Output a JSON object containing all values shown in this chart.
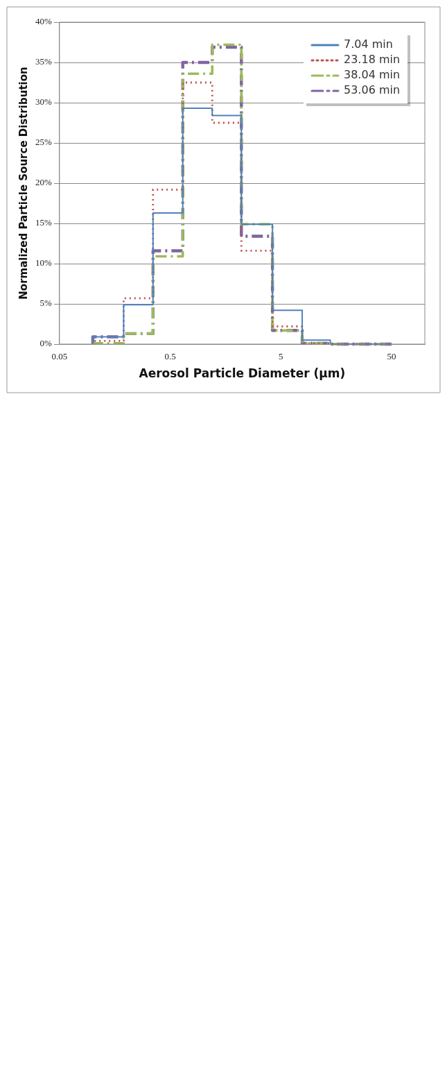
{
  "chart_data": {
    "type": "step",
    "xlabel": "Aerosol Particle Diameter (µm)",
    "ylabel": "Normalized Particle Source Distribution",
    "x": [
      0.1,
      0.19,
      0.35,
      0.65,
      1.2,
      2.2,
      4.2,
      7.8,
      14,
      27,
      50
    ],
    "series": [
      {
        "name": "7.04 min",
        "color": "#4f81bd",
        "line_style": "solid",
        "values": [
          0,
          0.9,
          4.9,
          16.3,
          29.3,
          28.4,
          14.9,
          4.2,
          0.5,
          0,
          0
        ]
      },
      {
        "name": "23.18 min",
        "color": "#c0504d",
        "line_style": "dotted",
        "values": [
          0,
          0.4,
          5.7,
          19.2,
          32.5,
          27.5,
          11.6,
          2.2,
          0.1,
          0,
          0
        ]
      },
      {
        "name": "38.04 min",
        "color": "#9bbb59",
        "line_style": "dashed",
        "values": [
          0,
          0.1,
          1.3,
          10.9,
          33.6,
          37.2,
          14.9,
          1.7,
          0.1,
          0,
          0
        ]
      },
      {
        "name": "53.06 min",
        "color": "#8064a2",
        "line_style": "dashed",
        "values": [
          0,
          0.9,
          1.3,
          11.6,
          35.0,
          36.9,
          13.4,
          1.7,
          0.1,
          0,
          0
        ]
      }
    ],
    "log": "x",
    "xlim": [
      0.05,
      100
    ],
    "xticks": [
      0.05,
      0.5,
      5,
      50
    ],
    "ylim": [
      0,
      40
    ],
    "yticks": [
      {
        "value": 0,
        "label": "0%"
      },
      {
        "value": 5,
        "label": "5%"
      },
      {
        "value": 10,
        "label": "10%"
      },
      {
        "value": 15,
        "label": "15%"
      },
      {
        "value": 20,
        "label": "20%"
      },
      {
        "value": 25,
        "label": "25%"
      },
      {
        "value": 30,
        "label": "30%"
      },
      {
        "value": 35,
        "label": "35%"
      },
      {
        "value": 40,
        "label": "40%"
      }
    ],
    "grid": "y",
    "legend": "top right"
  }
}
